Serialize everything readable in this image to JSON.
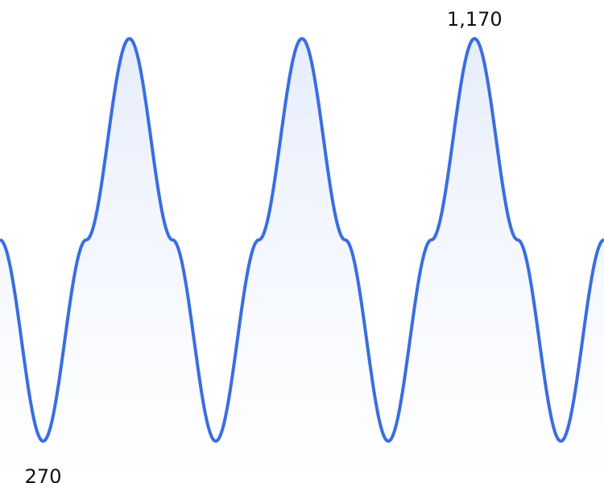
{
  "chart_data": {
    "type": "area",
    "title": "",
    "xlabel": "",
    "ylabel": "",
    "grid": false,
    "legend": "none",
    "x": [
      0,
      0.5,
      1,
      1.5,
      2,
      2.5,
      3,
      3.5,
      4,
      4.5,
      5,
      5.5,
      6,
      6.5,
      7
    ],
    "series": [
      {
        "values": [
          720,
          270,
          720,
          1170,
          720,
          270,
          720,
          1170,
          720,
          270,
          720,
          1170,
          720,
          270,
          720
        ]
      }
    ],
    "ylim": [
      220,
      1270
    ],
    "annotations": [
      {
        "text": "1,170",
        "x": 5.5,
        "y": 1170,
        "position": "above"
      },
      {
        "text": "270",
        "x": 0.5,
        "y": 270,
        "position": "below"
      }
    ],
    "colors": {
      "line": "#3a6ee0",
      "fill_top": "#e3ebfb",
      "fill_bottom": "#ffffff"
    }
  }
}
